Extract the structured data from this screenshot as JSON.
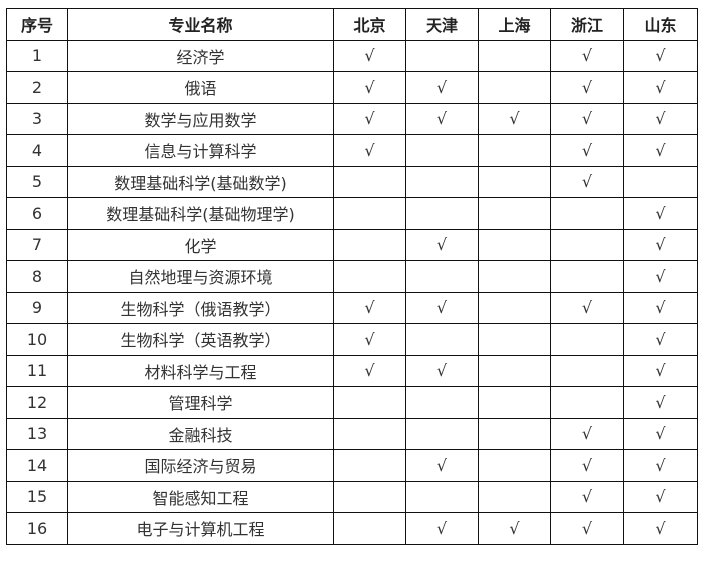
{
  "headers": [
    "序号",
    "专业名称",
    "北京",
    "天津",
    "上海",
    "浙江",
    "山东"
  ],
  "check": "√",
  "rows": [
    {
      "no": "1",
      "name": "经济学",
      "marks": [
        1,
        0,
        0,
        1,
        1
      ]
    },
    {
      "no": "2",
      "name": "俄语",
      "marks": [
        1,
        1,
        0,
        1,
        1
      ]
    },
    {
      "no": "3",
      "name": "数学与应用数学",
      "marks": [
        1,
        1,
        1,
        1,
        1
      ]
    },
    {
      "no": "4",
      "name": "信息与计算科学",
      "marks": [
        1,
        0,
        0,
        1,
        1
      ]
    },
    {
      "no": "5",
      "name": "数理基础科学(基础数学)",
      "marks": [
        0,
        0,
        0,
        1,
        0
      ]
    },
    {
      "no": "6",
      "name": "数理基础科学(基础物理学)",
      "marks": [
        0,
        0,
        0,
        0,
        1
      ]
    },
    {
      "no": "7",
      "name": "化学",
      "marks": [
        0,
        1,
        0,
        0,
        1
      ]
    },
    {
      "no": "8",
      "name": "自然地理与资源环境",
      "marks": [
        0,
        0,
        0,
        0,
        1
      ]
    },
    {
      "no": "9",
      "name": "生物科学（俄语教学）",
      "marks": [
        1,
        1,
        0,
        1,
        1
      ]
    },
    {
      "no": "10",
      "name": "生物科学（英语教学）",
      "marks": [
        1,
        0,
        0,
        0,
        1
      ]
    },
    {
      "no": "11",
      "name": "材料科学与工程",
      "marks": [
        1,
        1,
        0,
        0,
        1
      ]
    },
    {
      "no": "12",
      "name": "管理科学",
      "marks": [
        0,
        0,
        0,
        0,
        1
      ]
    },
    {
      "no": "13",
      "name": "金融科技",
      "marks": [
        0,
        0,
        0,
        1,
        1
      ]
    },
    {
      "no": "14",
      "name": "国际经济与贸易",
      "marks": [
        0,
        1,
        0,
        1,
        1
      ]
    },
    {
      "no": "15",
      "name": "智能感知工程",
      "marks": [
        0,
        0,
        0,
        1,
        1
      ]
    },
    {
      "no": "16",
      "name": "电子与计算机工程",
      "marks": [
        0,
        1,
        1,
        1,
        1
      ]
    }
  ]
}
